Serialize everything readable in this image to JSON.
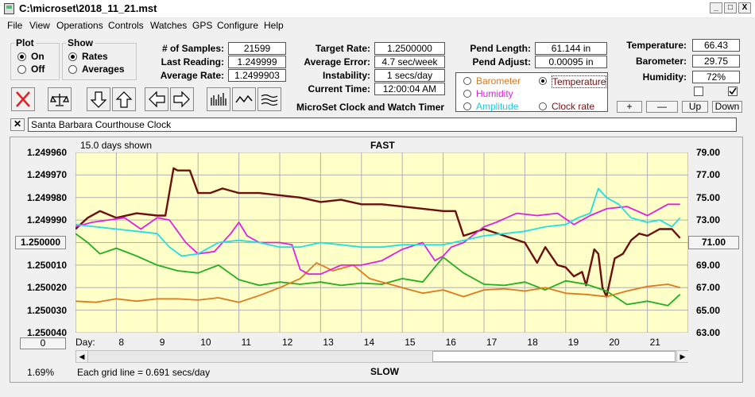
{
  "window": {
    "title": "C:\\microset\\2018_11_21.mst",
    "min": "_",
    "max": "□",
    "close": "X"
  },
  "menu": [
    "File",
    "View",
    "Operations",
    "Controls",
    "Watches",
    "GPS",
    "Configure",
    "Help"
  ],
  "plot": {
    "legend": "Plot",
    "on": "On",
    "off": "Off",
    "selected": "On"
  },
  "show": {
    "legend": "Show",
    "rates": "Rates",
    "averages": "Averages",
    "selected": "Rates"
  },
  "fields": {
    "samples": {
      "label": "# of Samples:",
      "value": "21599"
    },
    "last_reading": {
      "label": "Last Reading:",
      "value": "1.249999"
    },
    "average_rate": {
      "label": "Average Rate:",
      "value": "1.2499903"
    },
    "target_rate": {
      "label": "Target Rate:",
      "value": "1.2500000"
    },
    "average_error": {
      "label": "Average Error:",
      "value": "4.7 sec/week"
    },
    "instability": {
      "label": "Instability:",
      "value": "1 secs/day"
    },
    "current_time": {
      "label": "Current Time:",
      "value": "12:00:04 AM"
    },
    "pend_length": {
      "label": "Pend Length:",
      "value": "61.144 in"
    },
    "pend_adjust": {
      "label": "Pend Adjust:",
      "value": "0.00095 in"
    },
    "temperature": {
      "label": "Temperature:",
      "value": "66.43"
    },
    "barometer": {
      "label": "Barometer:",
      "value": "29.75"
    },
    "humidity": {
      "label": "Humidity:",
      "value": "72%"
    }
  },
  "timer_caption": "MicroSet Clock and Watch Timer",
  "param_radios": {
    "barometer": {
      "label": "Barometer",
      "color": "#e07a1c"
    },
    "temperature": {
      "label": "Temperature",
      "color": "#6d0f0f",
      "selected": true
    },
    "humidity": {
      "label": "Humidity",
      "color": "#e020e0"
    },
    "amplitude": {
      "label": "Amplitude",
      "color": "#20c8e0"
    },
    "clock_rate": {
      "label": "Clock rate",
      "color": "#7a1010"
    }
  },
  "adjust_buttons": {
    "plus": "+",
    "minus": "—",
    "up": "Up",
    "down": "Down"
  },
  "clock_name": "Santa Barbara Courthouse Clock",
  "chart_data": {
    "type": "line",
    "top_label": "FAST",
    "bottom_label": "SLOW",
    "days_shown": "15.0 days shown",
    "grid_note": "Each grid line = 0.691 secs/day",
    "percent": "1.69%",
    "x_label": "Day:",
    "x_ticks": [
      "8",
      "9",
      "10",
      "11",
      "12",
      "13",
      "14",
      "15",
      "16",
      "17",
      "18",
      "19",
      "20",
      "21"
    ],
    "x_range": [
      7.0,
      22.0
    ],
    "y_left_ticks": [
      "1.249960",
      "1.249970",
      "1.249980",
      "1.249990",
      "1.250000",
      "1.250010",
      "1.250020",
      "1.250030",
      "1.250040"
    ],
    "y_left_range": [
      1.24996,
      1.25004
    ],
    "y_left_center_button": "1.250000",
    "y_right_ticks": [
      "79.00",
      "77.00",
      "75.00",
      "73.00",
      "71.00",
      "69.00",
      "67.00",
      "65.00",
      "63.00"
    ],
    "y_right_range": [
      63,
      79
    ],
    "y_right_center_button": "71.00",
    "zero_button": "0",
    "series": [
      {
        "key": "clock_rate",
        "color": "#6d0f0f",
        "x": [
          7.0,
          7.3,
          7.6,
          8.0,
          8.5,
          9.0,
          9.2,
          9.4,
          9.5,
          9.8,
          10.0,
          10.3,
          10.6,
          11.0,
          11.5,
          12.0,
          12.5,
          13.0,
          13.5,
          14.0,
          14.5,
          15.0,
          15.5,
          16.0,
          16.3,
          16.5,
          17.0,
          17.5,
          18.0,
          18.3,
          18.5,
          18.8,
          19.0,
          19.2,
          19.4,
          19.5,
          19.7,
          19.8,
          19.9,
          20.0,
          20.2,
          20.4,
          20.6,
          20.8,
          21.0,
          21.3,
          21.6,
          21.8
        ],
        "y": [
          1.249994,
          1.249989,
          1.249986,
          1.249989,
          1.249987,
          1.249988,
          1.249988,
          1.249967,
          1.249968,
          1.249968,
          1.249978,
          1.249978,
          1.249976,
          1.249978,
          1.249978,
          1.249979,
          1.24998,
          1.249982,
          1.249981,
          1.249983,
          1.249983,
          1.249984,
          1.249985,
          1.249986,
          1.249986,
          1.249997,
          1.249994,
          1.249997,
          1.25,
          1.250009,
          1.250002,
          1.25001,
          1.250011,
          1.250015,
          1.250013,
          1.250019,
          1.250003,
          1.250005,
          1.25002,
          1.250024,
          1.250007,
          1.250005,
          1.249999,
          1.249996,
          1.249997,
          1.249994,
          1.249994,
          1.249998
        ]
      },
      {
        "key": "temperature",
        "color": "#20b020",
        "x": [
          7.0,
          7.3,
          7.6,
          8.0,
          8.5,
          9.0,
          9.5,
          10.0,
          10.5,
          11.0,
          11.5,
          12.0,
          12.5,
          13.0,
          13.5,
          14.0,
          14.5,
          15.0,
          15.5,
          16.0,
          16.5,
          17.0,
          17.5,
          18.0,
          18.5,
          19.0,
          19.5,
          20.0,
          20.5,
          21.0,
          21.5,
          21.8
        ],
        "y": [
          71.8,
          71.0,
          70.0,
          70.5,
          69.8,
          69.0,
          68.5,
          68.3,
          69.0,
          67.7,
          67.2,
          67.5,
          67.3,
          67.5,
          67.2,
          67.4,
          67.3,
          67.8,
          67.5,
          69.7,
          68.3,
          67.3,
          67.2,
          67.5,
          66.8,
          67.6,
          67.3,
          66.7,
          65.5,
          65.8,
          65.4,
          66.4
        ]
      },
      {
        "key": "barometer",
        "color": "#e07a1c",
        "x": [
          7.0,
          7.5,
          8.0,
          8.5,
          9.0,
          9.5,
          10.0,
          10.5,
          11.0,
          11.5,
          12.0,
          12.5,
          12.9,
          13.3,
          13.8,
          14.2,
          14.5,
          15.0,
          15.5,
          16.0,
          16.5,
          17.0,
          17.5,
          18.0,
          18.5,
          19.0,
          19.5,
          20.0,
          20.5,
          21.0,
          21.5,
          21.8
        ],
        "y": [
          65.8,
          65.7,
          66.0,
          65.8,
          66.0,
          66.0,
          65.9,
          66.1,
          65.7,
          66.3,
          67.0,
          67.8,
          69.2,
          68.5,
          69.0,
          67.8,
          67.5,
          67.0,
          66.5,
          66.8,
          66.2,
          66.8,
          66.9,
          66.7,
          67.0,
          66.5,
          66.4,
          66.2,
          66.7,
          67.1,
          67.3,
          67.0
        ]
      },
      {
        "key": "humidity",
        "color": "#e020e0",
        "x": [
          7.0,
          7.4,
          7.8,
          8.2,
          8.6,
          9.0,
          9.3,
          9.7,
          10.0,
          10.4,
          10.8,
          11.0,
          11.2,
          11.5,
          11.8,
          12.0,
          12.3,
          12.5,
          12.7,
          13.0,
          13.5,
          14.0,
          14.5,
          15.0,
          15.5,
          15.8,
          16.0,
          16.2,
          16.5,
          17.0,
          17.3,
          17.8,
          18.3,
          18.8,
          19.2,
          19.6,
          20.0,
          20.5,
          21.0,
          21.5,
          21.8
        ],
        "y": [
          1.249993,
          1.249991,
          1.24999,
          1.249989,
          1.249994,
          1.249989,
          1.24999,
          1.25,
          1.250005,
          1.250004,
          1.249996,
          1.249991,
          1.249997,
          1.25,
          1.25,
          1.25,
          1.250001,
          1.250012,
          1.250014,
          1.250014,
          1.25001,
          1.25001,
          1.250008,
          1.250003,
          1.25,
          1.250008,
          1.250006,
          1.250002,
          1.25,
          1.249993,
          1.249991,
          1.249987,
          1.249988,
          1.249987,
          1.249992,
          1.249988,
          1.249985,
          1.249984,
          1.249988,
          1.249983,
          1.249983
        ]
      },
      {
        "key": "amplitude",
        "color": "#20e0e0",
        "x": [
          7.0,
          7.5,
          8.0,
          8.5,
          9.0,
          9.3,
          9.6,
          10.0,
          10.5,
          11.0,
          11.5,
          12.0,
          12.5,
          13.0,
          13.5,
          14.0,
          14.5,
          15.0,
          15.5,
          16.0,
          16.5,
          17.0,
          17.5,
          18.0,
          18.5,
          19.0,
          19.3,
          19.6,
          19.8,
          20.0,
          20.3,
          20.6,
          21.0,
          21.3,
          21.6,
          21.8
        ],
        "y": [
          1.249992,
          1.249993,
          1.249994,
          1.249995,
          1.249996,
          1.250002,
          1.250006,
          1.250005,
          1.25,
          1.249999,
          1.25,
          1.250002,
          1.250002,
          1.25,
          1.250001,
          1.250002,
          1.250002,
          1.250001,
          1.250001,
          1.250001,
          1.249999,
          1.249997,
          1.249996,
          1.249995,
          1.249993,
          1.249992,
          1.249989,
          1.249987,
          1.249976,
          1.24998,
          1.249983,
          1.249989,
          1.249991,
          1.24999,
          1.249993,
          1.249989
        ]
      }
    ]
  }
}
